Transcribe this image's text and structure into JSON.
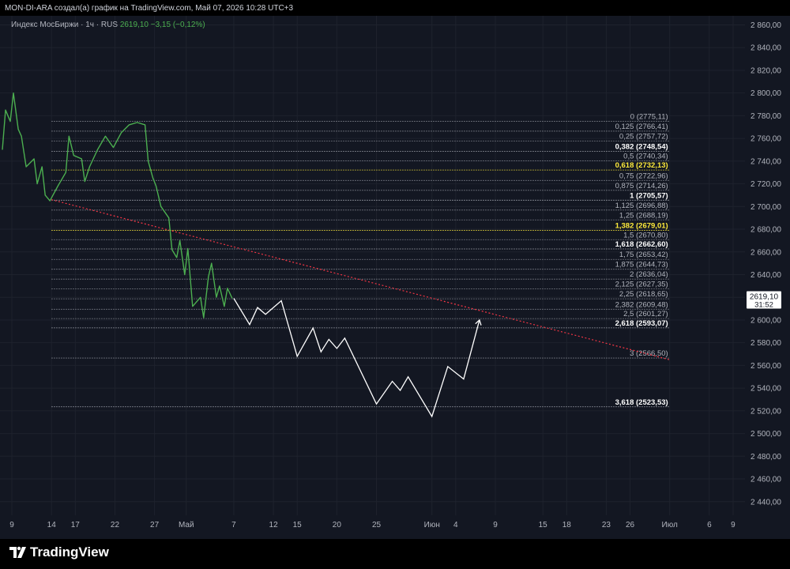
{
  "header": {
    "title": "MON-DI-ARA создал(а) график на TradingView.com, Май 07, 2026 10:28 UTC+3"
  },
  "legend": {
    "symbol": "Индекс МосБиржи · 1ч · RUS",
    "last": "2619,10",
    "change": "−3,15 (−0,12%)"
  },
  "footer": {
    "brand": "TradingView"
  },
  "price_label": {
    "price": "2619,10",
    "countdown": "31:52"
  },
  "colors": {
    "background": "#131722",
    "price_line": "#4caf50",
    "projection": "#ffffff",
    "trendline": "#f23645",
    "fib_line": "#b2b5be",
    "fib_highlight": "#ffeb3b"
  },
  "chart_data": {
    "type": "line",
    "ylim": [
      2428,
      2868
    ],
    "y_ticks": [
      2440,
      2460,
      2480,
      2500,
      2520,
      2540,
      2560,
      2580,
      2600,
      2620,
      2640,
      2660,
      2680,
      2700,
      2720,
      2740,
      2760,
      2780,
      2800,
      2820,
      2840,
      2860
    ],
    "x_ticks": [
      {
        "label": "9",
        "date": "2026-04-09"
      },
      {
        "label": "14",
        "date": "2026-04-14"
      },
      {
        "label": "17",
        "date": "2026-04-17"
      },
      {
        "label": "22",
        "date": "2026-04-22"
      },
      {
        "label": "27",
        "date": "2026-04-27"
      },
      {
        "label": "Май",
        "date": "2026-05-01"
      },
      {
        "label": "7",
        "date": "2026-05-07"
      },
      {
        "label": "12",
        "date": "2026-05-12"
      },
      {
        "label": "15",
        "date": "2026-05-15"
      },
      {
        "label": "20",
        "date": "2026-05-20"
      },
      {
        "label": "25",
        "date": "2026-05-25"
      },
      {
        "label": "Июн",
        "date": "2026-06-01"
      },
      {
        "label": "4",
        "date": "2026-06-04"
      },
      {
        "label": "9",
        "date": "2026-06-09"
      },
      {
        "label": "15",
        "date": "2026-06-15"
      },
      {
        "label": "18",
        "date": "2026-06-18"
      },
      {
        "label": "23",
        "date": "2026-06-23"
      },
      {
        "label": "26",
        "date": "2026-06-26"
      },
      {
        "label": "Июл",
        "date": "2026-07-01"
      },
      {
        "label": "6",
        "date": "2026-07-06"
      },
      {
        "label": "9",
        "date": "2026-07-09"
      }
    ],
    "price_series": [
      {
        "date": "2026-04-08",
        "y": 2750
      },
      {
        "date": "2026-04-08",
        "y": 2785
      },
      {
        "date": "2026-04-09",
        "y": 2775
      },
      {
        "date": "2026-04-09",
        "y": 2800
      },
      {
        "date": "2026-04-10",
        "y": 2768
      },
      {
        "date": "2026-04-10",
        "y": 2762
      },
      {
        "date": "2026-04-11",
        "y": 2735
      },
      {
        "date": "2026-04-12",
        "y": 2742
      },
      {
        "date": "2026-04-12",
        "y": 2720
      },
      {
        "date": "2026-04-13",
        "y": 2735
      },
      {
        "date": "2026-04-13",
        "y": 2710
      },
      {
        "date": "2026-04-14",
        "y": 2705
      },
      {
        "date": "2026-04-15",
        "y": 2718
      },
      {
        "date": "2026-04-16",
        "y": 2730
      },
      {
        "date": "2026-04-16",
        "y": 2762
      },
      {
        "date": "2026-04-17",
        "y": 2745
      },
      {
        "date": "2026-04-18",
        "y": 2742
      },
      {
        "date": "2026-04-18",
        "y": 2722
      },
      {
        "date": "2026-04-19",
        "y": 2735
      },
      {
        "date": "2026-04-20",
        "y": 2750
      },
      {
        "date": "2026-04-21",
        "y": 2762
      },
      {
        "date": "2026-04-22",
        "y": 2752
      },
      {
        "date": "2026-04-23",
        "y": 2765
      },
      {
        "date": "2026-04-24",
        "y": 2772
      },
      {
        "date": "2026-04-25",
        "y": 2774
      },
      {
        "date": "2026-04-26",
        "y": 2772
      },
      {
        "date": "2026-04-26",
        "y": 2740
      },
      {
        "date": "2026-04-27",
        "y": 2725
      },
      {
        "date": "2026-04-27",
        "y": 2718
      },
      {
        "date": "2026-04-28",
        "y": 2700
      },
      {
        "date": "2026-04-29",
        "y": 2690
      },
      {
        "date": "2026-04-29",
        "y": 2662
      },
      {
        "date": "2026-04-30",
        "y": 2655
      },
      {
        "date": "2026-04-30",
        "y": 2670
      },
      {
        "date": "2026-05-01",
        "y": 2640
      },
      {
        "date": "2026-05-01",
        "y": 2663
      },
      {
        "date": "2026-05-02",
        "y": 2612
      },
      {
        "date": "2026-05-03",
        "y": 2620
      },
      {
        "date": "2026-05-03",
        "y": 2602
      },
      {
        "date": "2026-05-04",
        "y": 2638
      },
      {
        "date": "2026-05-04",
        "y": 2650
      },
      {
        "date": "2026-05-05",
        "y": 2620
      },
      {
        "date": "2026-05-05",
        "y": 2630
      },
      {
        "date": "2026-05-06",
        "y": 2612
      },
      {
        "date": "2026-05-06",
        "y": 2628
      },
      {
        "date": "2026-05-07",
        "y": 2619.1
      }
    ],
    "projection_path": [
      {
        "date": "2026-05-07",
        "y": 2619.1
      },
      {
        "date": "2026-05-09",
        "y": 2596
      },
      {
        "date": "2026-05-10",
        "y": 2611
      },
      {
        "date": "2026-05-11",
        "y": 2605
      },
      {
        "date": "2026-05-13",
        "y": 2617
      },
      {
        "date": "2026-05-15",
        "y": 2568
      },
      {
        "date": "2026-05-17",
        "y": 2593
      },
      {
        "date": "2026-05-18",
        "y": 2572
      },
      {
        "date": "2026-05-19",
        "y": 2583
      },
      {
        "date": "2026-05-20",
        "y": 2575
      },
      {
        "date": "2026-05-21",
        "y": 2584
      },
      {
        "date": "2026-05-25",
        "y": 2526
      },
      {
        "date": "2026-05-27",
        "y": 2546
      },
      {
        "date": "2026-05-28",
        "y": 2538
      },
      {
        "date": "2026-05-29",
        "y": 2550
      },
      {
        "date": "2026-06-01",
        "y": 2515
      },
      {
        "date": "2026-06-03",
        "y": 2559
      },
      {
        "date": "2026-06-05",
        "y": 2548
      },
      {
        "date": "2026-06-07",
        "y": 2600
      }
    ],
    "trendline": {
      "from": {
        "date": "2026-04-14",
        "y": 2706
      },
      "to": {
        "date": "2026-07-01",
        "y": 2565
      }
    },
    "fib_levels": [
      {
        "ratio": "0",
        "label": "0 (2775,11)",
        "price": 2775.11,
        "style": "normal"
      },
      {
        "ratio": "0,125",
        "label": "0,125 (2766,41)",
        "price": 2766.41,
        "style": "normal"
      },
      {
        "ratio": "0,25",
        "label": "0,25 (2757,72)",
        "price": 2757.72,
        "style": "normal"
      },
      {
        "ratio": "0,382",
        "label": "0,382 (2748,54)",
        "price": 2748.54,
        "style": "white"
      },
      {
        "ratio": "0,5",
        "label": "0,5 (2740,34)",
        "price": 2740.34,
        "style": "normal"
      },
      {
        "ratio": "0,618",
        "label": "0,618 (2732,13)",
        "price": 2732.13,
        "style": "yellow"
      },
      {
        "ratio": "0,75",
        "label": "0,75 (2722,96)",
        "price": 2722.96,
        "style": "normal"
      },
      {
        "ratio": "0,875",
        "label": "0,875 (2714,26)",
        "price": 2714.26,
        "style": "normal"
      },
      {
        "ratio": "1",
        "label": "1 (2705,57)",
        "price": 2705.57,
        "style": "white"
      },
      {
        "ratio": "1,125",
        "label": "1,125 (2696,88)",
        "price": 2696.88,
        "style": "normal"
      },
      {
        "ratio": "1,25",
        "label": "1,25 (2688,19)",
        "price": 2688.19,
        "style": "normal"
      },
      {
        "ratio": "1,382",
        "label": "1,382 (2679,01)",
        "price": 2679.01,
        "style": "yellow"
      },
      {
        "ratio": "1,5",
        "label": "1,5 (2670,80)",
        "price": 2670.8,
        "style": "normal"
      },
      {
        "ratio": "1,618",
        "label": "1,618 (2662,60)",
        "price": 2662.6,
        "style": "white"
      },
      {
        "ratio": "1,75",
        "label": "1,75 (2653,42)",
        "price": 2653.42,
        "style": "normal"
      },
      {
        "ratio": "1,875",
        "label": "1,875 (2644,73)",
        "price": 2644.73,
        "style": "normal"
      },
      {
        "ratio": "2",
        "label": "2 (2636,04)",
        "price": 2636.04,
        "style": "normal"
      },
      {
        "ratio": "2,125",
        "label": "2,125 (2627,35)",
        "price": 2627.35,
        "style": "normal"
      },
      {
        "ratio": "2,25",
        "label": "2,25 (2618,65)",
        "price": 2618.65,
        "style": "normal"
      },
      {
        "ratio": "2,382",
        "label": "2,382 (2609,48)",
        "price": 2609.48,
        "style": "normal"
      },
      {
        "ratio": "2,5",
        "label": "2,5 (2601,27)",
        "price": 2601.27,
        "style": "normal"
      },
      {
        "ratio": "2,618",
        "label": "2,618 (2593,07)",
        "price": 2593.07,
        "style": "white"
      },
      {
        "ratio": "3",
        "label": "3 (2566,50)",
        "price": 2566.5,
        "style": "normal"
      },
      {
        "ratio": "3,618",
        "label": "3,618 (2523,53)",
        "price": 2523.53,
        "style": "white"
      }
    ]
  }
}
